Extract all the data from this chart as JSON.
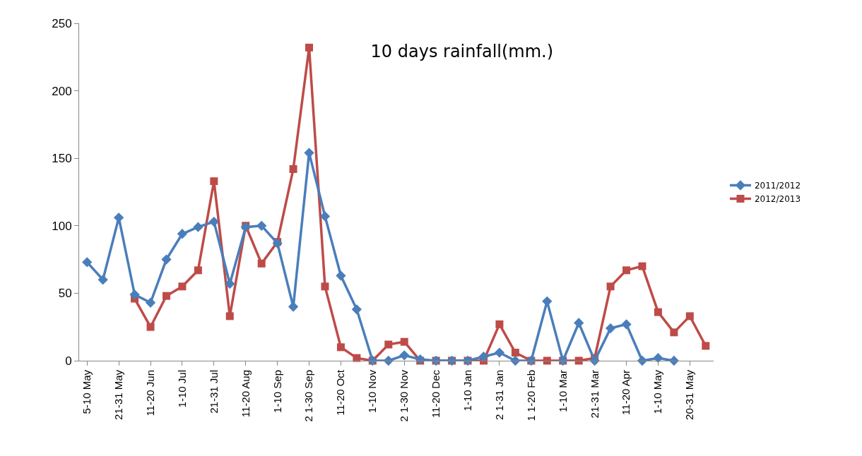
{
  "chart_data": {
    "type": "line",
    "title": "10 days rainfall(mm.)",
    "categories": [
      "5-10 May",
      null,
      "21-31 May",
      null,
      "11-20 Jun",
      null,
      "1-10 Jul",
      null,
      "21-31 Jul",
      null,
      "11-20 Aug",
      null,
      "1-10 Sep",
      null,
      "2 1-30 Sep",
      null,
      "11-20 Oct",
      null,
      "1-10 Nov",
      null,
      "2 1-30 Nov",
      null,
      "11-20 Dec",
      null,
      "1-10 Jan",
      null,
      "2 1-31 Jan",
      null,
      "1 1-20 Feb",
      null,
      "1-10 Mar",
      null,
      "21-31 Mar",
      null,
      "11-20 Apr",
      null,
      "1-10 May",
      null,
      "20-31 May",
      null
    ],
    "series": [
      {
        "name": "2011/2012",
        "color": "#4a7ebb",
        "marker": "diamond",
        "values": [
          73,
          60,
          106,
          49,
          43,
          75,
          94,
          99,
          103,
          57,
          99,
          100,
          87,
          40,
          154,
          107,
          63,
          38,
          0,
          0,
          4,
          1,
          0,
          0,
          0,
          3,
          6,
          0,
          0,
          44,
          0,
          28,
          0,
          24,
          27,
          0,
          2,
          0,
          null,
          null
        ]
      },
      {
        "name": "2012/2013",
        "color": "#be4b48",
        "marker": "square",
        "values": [
          null,
          null,
          null,
          46,
          25,
          48,
          55,
          67,
          133,
          33,
          100,
          72,
          88,
          142,
          232,
          55,
          10,
          2,
          0,
          12,
          14,
          0,
          0,
          0,
          0,
          0,
          27,
          6,
          0,
          0,
          0,
          0,
          2,
          55,
          67,
          70,
          36,
          21,
          33,
          11
        ]
      }
    ],
    "ylim": [
      0,
      250
    ],
    "yticks": [
      0,
      50,
      100,
      150,
      200,
      250
    ],
    "grid": false,
    "legend": "right",
    "line_style": "solid"
  }
}
